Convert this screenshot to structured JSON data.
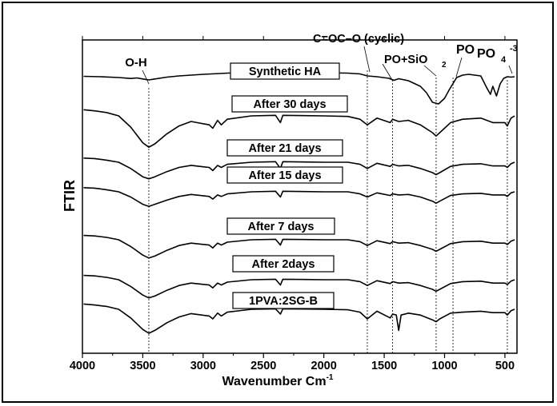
{
  "chart_data": {
    "type": "line",
    "title": "",
    "xlabel": "Wavenumber Cm",
    "xlabel_sup": "-1",
    "ylabel": "FTIR",
    "xlim": [
      4000,
      400
    ],
    "x_reversed": true,
    "xticks": [
      4000,
      3500,
      3000,
      2500,
      2000,
      1500,
      1000,
      500
    ],
    "y_ticks_shown": false,
    "grid": false,
    "legend": "none",
    "line_color": "#000000",
    "series": [
      {
        "name": "Synthetic HA",
        "points": [
          [
            3990,
            0.45
          ],
          [
            3850,
            0.4
          ],
          [
            3700,
            0.3
          ],
          [
            3600,
            0.18
          ],
          [
            3550,
            0.25
          ],
          [
            3500,
            0.12
          ],
          [
            3450,
            0.0
          ],
          [
            3400,
            0.12
          ],
          [
            3300,
            0.35
          ],
          [
            3200,
            0.5
          ],
          [
            3000,
            0.7
          ],
          [
            2800,
            0.85
          ],
          [
            2600,
            0.95
          ],
          [
            2400,
            0.9
          ],
          [
            2360,
            0.6
          ],
          [
            2340,
            0.85
          ],
          [
            2000,
            0.9
          ],
          [
            1800,
            0.85
          ],
          [
            1700,
            0.75
          ],
          [
            1640,
            0.5
          ],
          [
            1560,
            0.4
          ],
          [
            1460,
            0.2
          ],
          [
            1420,
            -0.05
          ],
          [
            1380,
            0.15
          ],
          [
            1300,
            -0.1
          ],
          [
            1200,
            -0.8
          ],
          [
            1150,
            -1.6
          ],
          [
            1100,
            -2.8
          ],
          [
            1050,
            -3.0
          ],
          [
            1000,
            -2.3
          ],
          [
            960,
            -1.2
          ],
          [
            900,
            0.3
          ],
          [
            850,
            0.6
          ],
          [
            800,
            0.7
          ],
          [
            700,
            0.5
          ],
          [
            650,
            -1.0
          ],
          [
            620,
            -1.8
          ],
          [
            600,
            -0.8
          ],
          [
            570,
            -2.0
          ],
          [
            540,
            -0.5
          ],
          [
            510,
            0.2
          ],
          [
            480,
            0.4
          ],
          [
            450,
            0.35
          ],
          [
            420,
            0.4
          ]
        ]
      },
      {
        "name": "After 30 days",
        "points": [
          [
            3990,
            0.55
          ],
          [
            3900,
            0.45
          ],
          [
            3800,
            0.3
          ],
          [
            3700,
            0.0
          ],
          [
            3600,
            -1.0
          ],
          [
            3500,
            -2.4
          ],
          [
            3450,
            -2.8
          ],
          [
            3400,
            -2.5
          ],
          [
            3300,
            -1.6
          ],
          [
            3200,
            -0.9
          ],
          [
            3100,
            -0.5
          ],
          [
            2950,
            -0.8
          ],
          [
            2920,
            -1.1
          ],
          [
            2880,
            -0.4
          ],
          [
            2850,
            -0.8
          ],
          [
            2800,
            -0.3
          ],
          [
            2600,
            0.0
          ],
          [
            2400,
            0.05
          ],
          [
            2360,
            -0.6
          ],
          [
            2340,
            0.05
          ],
          [
            2000,
            0.0
          ],
          [
            1800,
            -0.05
          ],
          [
            1700,
            -0.3
          ],
          [
            1640,
            -0.8
          ],
          [
            1560,
            -0.2
          ],
          [
            1450,
            -0.6
          ],
          [
            1430,
            -0.3
          ],
          [
            1380,
            -0.5
          ],
          [
            1300,
            -0.4
          ],
          [
            1200,
            -0.8
          ],
          [
            1100,
            -1.5
          ],
          [
            1070,
            -1.8
          ],
          [
            1040,
            -1.5
          ],
          [
            950,
            -0.6
          ],
          [
            850,
            -0.3
          ],
          [
            700,
            -0.2
          ],
          [
            600,
            -0.6
          ],
          [
            500,
            -0.6
          ],
          [
            480,
            -0.9
          ],
          [
            450,
            -0.2
          ],
          [
            420,
            0.0
          ]
        ]
      },
      {
        "name": "After 21 days",
        "points": [
          [
            3990,
            0.4
          ],
          [
            3900,
            0.35
          ],
          [
            3800,
            0.2
          ],
          [
            3700,
            0.0
          ],
          [
            3600,
            -0.6
          ],
          [
            3500,
            -1.4
          ],
          [
            3450,
            -1.6
          ],
          [
            3400,
            -1.4
          ],
          [
            3300,
            -0.9
          ],
          [
            3200,
            -0.5
          ],
          [
            3100,
            -0.3
          ],
          [
            2950,
            -0.5
          ],
          [
            2920,
            -0.8
          ],
          [
            2880,
            -0.3
          ],
          [
            2850,
            -0.5
          ],
          [
            2800,
            -0.2
          ],
          [
            2600,
            0.0
          ],
          [
            2400,
            0.05
          ],
          [
            2360,
            -0.6
          ],
          [
            2340,
            0.05
          ],
          [
            2000,
            0.0
          ],
          [
            1800,
            0.0
          ],
          [
            1700,
            -0.2
          ],
          [
            1640,
            -0.6
          ],
          [
            1560,
            -0.1
          ],
          [
            1450,
            -0.4
          ],
          [
            1430,
            -0.2
          ],
          [
            1380,
            -0.35
          ],
          [
            1300,
            -0.3
          ],
          [
            1200,
            -0.6
          ],
          [
            1100,
            -1.0
          ],
          [
            1070,
            -1.2
          ],
          [
            1040,
            -1.0
          ],
          [
            950,
            -0.4
          ],
          [
            850,
            -0.2
          ],
          [
            700,
            -0.15
          ],
          [
            600,
            -0.35
          ],
          [
            500,
            -0.35
          ],
          [
            480,
            -0.5
          ],
          [
            450,
            -0.15
          ],
          [
            420,
            0.0
          ]
        ]
      },
      {
        "name": "After 15 days",
        "points": [
          [
            3990,
            0.4
          ],
          [
            3900,
            0.35
          ],
          [
            3800,
            0.2
          ],
          [
            3700,
            0.0
          ],
          [
            3600,
            -0.5
          ],
          [
            3500,
            -1.2
          ],
          [
            3450,
            -1.4
          ],
          [
            3400,
            -1.2
          ],
          [
            3300,
            -0.8
          ],
          [
            3200,
            -0.45
          ],
          [
            3100,
            -0.25
          ],
          [
            2950,
            -0.45
          ],
          [
            2920,
            -0.7
          ],
          [
            2880,
            -0.3
          ],
          [
            2850,
            -0.45
          ],
          [
            2800,
            -0.2
          ],
          [
            2600,
            0.0
          ],
          [
            2400,
            0.05
          ],
          [
            2360,
            -0.5
          ],
          [
            2340,
            0.05
          ],
          [
            2000,
            0.0
          ],
          [
            1800,
            0.0
          ],
          [
            1700,
            -0.2
          ],
          [
            1640,
            -0.5
          ],
          [
            1560,
            -0.1
          ],
          [
            1450,
            -0.35
          ],
          [
            1430,
            -0.2
          ],
          [
            1380,
            -0.3
          ],
          [
            1300,
            -0.25
          ],
          [
            1200,
            -0.5
          ],
          [
            1100,
            -0.9
          ],
          [
            1070,
            -1.1
          ],
          [
            1040,
            -0.9
          ],
          [
            950,
            -0.35
          ],
          [
            850,
            -0.2
          ],
          [
            700,
            -0.15
          ],
          [
            600,
            -0.3
          ],
          [
            500,
            -0.3
          ],
          [
            480,
            -0.45
          ],
          [
            450,
            -0.1
          ],
          [
            420,
            0.0
          ]
        ]
      },
      {
        "name": "After 7 days",
        "points": [
          [
            3990,
            0.45
          ],
          [
            3900,
            0.4
          ],
          [
            3800,
            0.25
          ],
          [
            3700,
            0.0
          ],
          [
            3600,
            -0.7
          ],
          [
            3500,
            -1.6
          ],
          [
            3450,
            -1.9
          ],
          [
            3400,
            -1.7
          ],
          [
            3300,
            -1.1
          ],
          [
            3200,
            -0.6
          ],
          [
            3100,
            -0.35
          ],
          [
            2950,
            -0.55
          ],
          [
            2920,
            -0.85
          ],
          [
            2880,
            -0.35
          ],
          [
            2850,
            -0.55
          ],
          [
            2800,
            -0.25
          ],
          [
            2600,
            0.0
          ],
          [
            2400,
            0.05
          ],
          [
            2360,
            -0.55
          ],
          [
            2340,
            0.05
          ],
          [
            2000,
            0.0
          ],
          [
            1800,
            0.0
          ],
          [
            1700,
            -0.2
          ],
          [
            1640,
            -0.6
          ],
          [
            1560,
            -0.1
          ],
          [
            1450,
            -0.4
          ],
          [
            1430,
            -0.2
          ],
          [
            1380,
            -0.35
          ],
          [
            1300,
            -0.3
          ],
          [
            1200,
            -0.6
          ],
          [
            1100,
            -1.0
          ],
          [
            1070,
            -1.2
          ],
          [
            1040,
            -1.0
          ],
          [
            950,
            -0.4
          ],
          [
            850,
            -0.2
          ],
          [
            700,
            -0.15
          ],
          [
            600,
            -0.35
          ],
          [
            500,
            -0.35
          ],
          [
            480,
            -0.5
          ],
          [
            450,
            -0.15
          ],
          [
            420,
            0.0
          ]
        ]
      },
      {
        "name": "After 2days",
        "points": [
          [
            3990,
            0.45
          ],
          [
            3900,
            0.4
          ],
          [
            3800,
            0.25
          ],
          [
            3700,
            0.0
          ],
          [
            3600,
            -0.7
          ],
          [
            3500,
            -1.6
          ],
          [
            3450,
            -1.9
          ],
          [
            3400,
            -1.7
          ],
          [
            3300,
            -1.1
          ],
          [
            3200,
            -0.6
          ],
          [
            3100,
            -0.35
          ],
          [
            2950,
            -0.55
          ],
          [
            2920,
            -0.85
          ],
          [
            2880,
            -0.35
          ],
          [
            2850,
            -0.55
          ],
          [
            2800,
            -0.25
          ],
          [
            2600,
            0.0
          ],
          [
            2400,
            0.05
          ],
          [
            2360,
            -0.55
          ],
          [
            2340,
            0.05
          ],
          [
            2000,
            0.0
          ],
          [
            1800,
            0.0
          ],
          [
            1700,
            -0.2
          ],
          [
            1640,
            -0.6
          ],
          [
            1560,
            -0.1
          ],
          [
            1450,
            -0.4
          ],
          [
            1430,
            -0.2
          ],
          [
            1380,
            -0.35
          ],
          [
            1300,
            -0.3
          ],
          [
            1200,
            -0.6
          ],
          [
            1100,
            -1.0
          ],
          [
            1070,
            -1.2
          ],
          [
            1040,
            -1.0
          ],
          [
            950,
            -0.4
          ],
          [
            850,
            -0.2
          ],
          [
            700,
            -0.15
          ],
          [
            600,
            -0.35
          ],
          [
            500,
            -0.35
          ],
          [
            480,
            -0.5
          ],
          [
            450,
            -0.15
          ],
          [
            420,
            0.0
          ]
        ]
      },
      {
        "name": "1PVA:2SG-B",
        "points": [
          [
            3990,
            0.55
          ],
          [
            3900,
            0.45
          ],
          [
            3800,
            0.3
          ],
          [
            3700,
            0.0
          ],
          [
            3600,
            -0.9
          ],
          [
            3500,
            -2.1
          ],
          [
            3450,
            -2.5
          ],
          [
            3400,
            -2.2
          ],
          [
            3300,
            -1.4
          ],
          [
            3200,
            -0.8
          ],
          [
            3100,
            -0.45
          ],
          [
            2950,
            -0.7
          ],
          [
            2920,
            -1.0
          ],
          [
            2880,
            -0.4
          ],
          [
            2850,
            -0.7
          ],
          [
            2800,
            -0.3
          ],
          [
            2600,
            0.0
          ],
          [
            2400,
            0.05
          ],
          [
            2360,
            -0.5
          ],
          [
            2340,
            0.05
          ],
          [
            2000,
            0.0
          ],
          [
            1800,
            -0.05
          ],
          [
            1700,
            -0.3
          ],
          [
            1640,
            -1.0
          ],
          [
            1560,
            -0.2
          ],
          [
            1450,
            -0.9
          ],
          [
            1430,
            -0.5
          ],
          [
            1400,
            -0.6
          ],
          [
            1380,
            -2.2
          ],
          [
            1360,
            -0.6
          ],
          [
            1300,
            -0.4
          ],
          [
            1200,
            -0.6
          ],
          [
            1100,
            -1.1
          ],
          [
            1070,
            -1.3
          ],
          [
            1040,
            -1.0
          ],
          [
            950,
            -0.4
          ],
          [
            850,
            -0.3
          ],
          [
            700,
            -0.2
          ],
          [
            600,
            -0.35
          ],
          [
            500,
            -0.35
          ],
          [
            480,
            -0.6
          ],
          [
            450,
            -0.15
          ],
          [
            420,
            0.0
          ]
        ]
      }
    ],
    "vlines": [
      3450,
      1640,
      1430,
      1070,
      930,
      480
    ],
    "annotations": [
      {
        "text": "O-H"
      },
      {
        "text": "C=OC–O (cyclic)"
      },
      {
        "text": "PO+SiO"
      },
      {
        "text": "2"
      },
      {
        "text": "PO"
      },
      {
        "text": "PO"
      },
      {
        "text": "4"
      },
      {
        "text": "-3"
      }
    ]
  }
}
